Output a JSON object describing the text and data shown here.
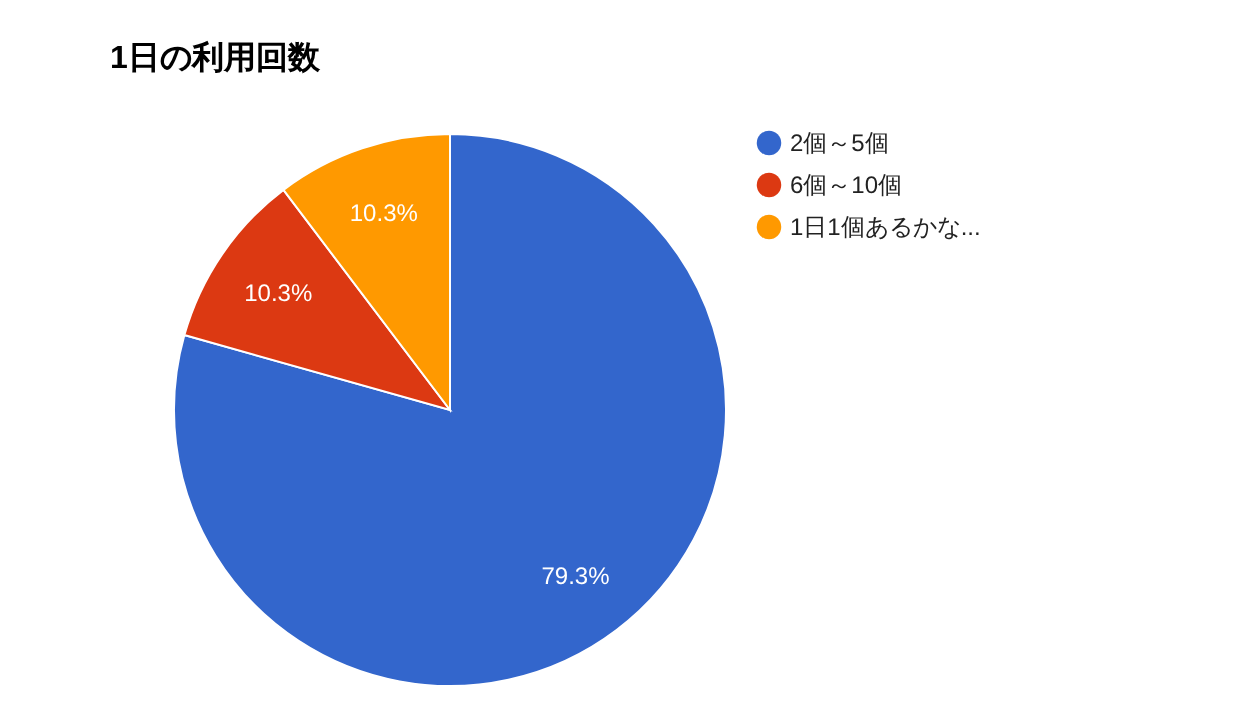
{
  "chart_data": {
    "type": "pie",
    "title": "1日の利用回数",
    "categories": [
      "2個～5個",
      "6個～10個",
      "1日1個あるかな..."
    ],
    "values": [
      79.3,
      10.3,
      10.3
    ],
    "colors": [
      "#3366cc",
      "#dc3912",
      "#ff9900"
    ],
    "value_labels": [
      "79.3%",
      "10.3%",
      "10.3%"
    ],
    "legend": "right"
  }
}
